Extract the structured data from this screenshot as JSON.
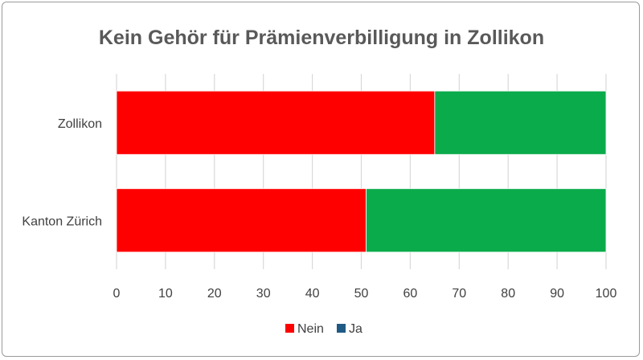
{
  "chart_data": {
    "type": "bar",
    "orientation": "horizontal",
    "stacked": true,
    "title": "Kein Gehör für Prämienverbilligung in Zollikon",
    "categories": [
      "Zollikon",
      "Kanton Zürich"
    ],
    "series": [
      {
        "name": "Nein",
        "values": [
          65,
          51
        ],
        "color": "#ff0000"
      },
      {
        "name": "Ja",
        "values": [
          35,
          49
        ],
        "color": "#0aab4b",
        "legend_color": "#1f5a85"
      }
    ],
    "xlim": [
      0,
      100
    ],
    "xticks": [
      "0",
      "10",
      "20",
      "30",
      "40",
      "50",
      "60",
      "70",
      "80",
      "90",
      "100"
    ],
    "grid": true,
    "legend": "bottom"
  }
}
